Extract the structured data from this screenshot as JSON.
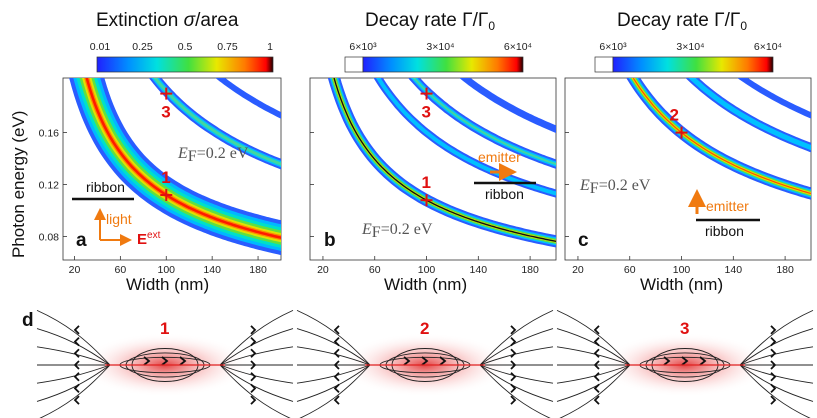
{
  "colors": {
    "red_label": "#e01010",
    "orange": "#f07a10",
    "bar_stops": [
      "#1a1aff",
      "#00a0ff",
      "#00e0e0",
      "#40e040",
      "#e0e000",
      "#ff8000",
      "#ff0000",
      "#200000"
    ]
  },
  "panels": {
    "a": {
      "label": "a",
      "title_text": "Extinction ",
      "title_sym": "σ",
      "title_tail": "/area",
      "colorbar_ticks": [
        "0.01",
        "0.25",
        "0.5",
        "0.75",
        "1"
      ],
      "ef_label": "E",
      "ef_sub": "F",
      "ef_value": "=0.2 eV",
      "ribbon": "ribbon",
      "light": "light",
      "efield": "E",
      "efield_sup": "ext",
      "markers": [
        {
          "id": "1",
          "width": 100,
          "energy": 0.112
        },
        {
          "id": "3",
          "width": 100,
          "energy": 0.19
        }
      ]
    },
    "b": {
      "label": "b",
      "title_text": "Decay rate ",
      "title_sym": "Γ/Γ",
      "title_sub": "0",
      "colorbar_ticks": [
        "6×10³",
        "3×10⁴",
        "6×10⁴"
      ],
      "ef_label": "E",
      "ef_sub": "F",
      "ef_value": "=0.2 eV",
      "emitter": "emitter",
      "ribbon": "ribbon",
      "markers": [
        {
          "id": "1",
          "width": 100,
          "energy": 0.108
        },
        {
          "id": "3",
          "width": 100,
          "energy": 0.19
        }
      ]
    },
    "c": {
      "label": "c",
      "title_text": "Decay rate ",
      "title_sym": "Γ/Γ",
      "title_sub": "0",
      "colorbar_ticks": [
        "6×10³",
        "3×10⁴",
        "6×10⁴"
      ],
      "ef_label": "E",
      "ef_sub": "F",
      "ef_value": "=0.2 eV",
      "emitter": "emitter",
      "ribbon": "ribbon",
      "markers": [
        {
          "id": "2",
          "width": 100,
          "energy": 0.16
        }
      ]
    },
    "d": {
      "label": "d",
      "modes": [
        "1",
        "2",
        "3"
      ]
    }
  },
  "axes": {
    "xlabel": "Width (nm)",
    "ylabel": "Photon energy (eV)",
    "xticks": [
      "20",
      "60",
      "100",
      "140",
      "180"
    ],
    "yticks": [
      "0.08",
      "0.12",
      "0.16"
    ],
    "xlim": [
      10,
      200
    ],
    "ylim": [
      0.062,
      0.202
    ]
  }
}
